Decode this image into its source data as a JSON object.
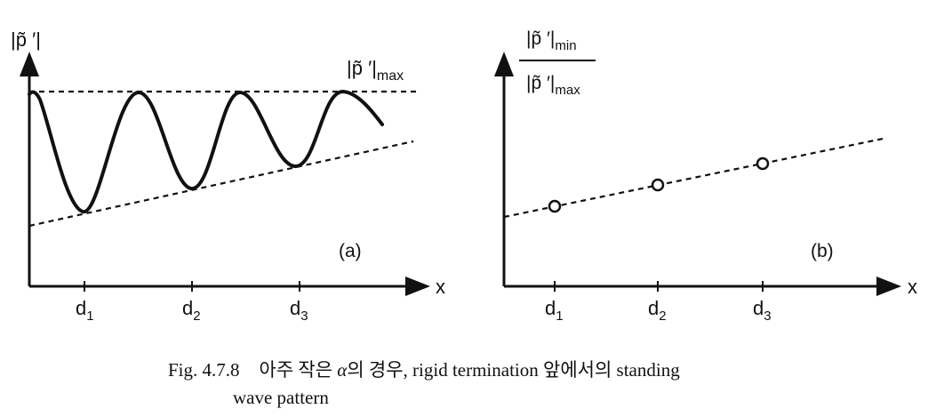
{
  "panel_a": {
    "y_label": "|p̃ ′|",
    "max_label_base": "|p̃ ′|",
    "max_label_sub": "max",
    "x_label": "x",
    "tag": "(a)",
    "ticks": [
      {
        "base": "d",
        "sub": "1"
      },
      {
        "base": "d",
        "sub": "2"
      },
      {
        "base": "d",
        "sub": "3"
      }
    ]
  },
  "panel_b": {
    "num_base": "|p̃ ′|",
    "num_sub": "min",
    "den_base": "|p̃ ′|",
    "den_sub": "max",
    "x_label": "x",
    "tag": "(b)",
    "ticks": [
      {
        "base": "d",
        "sub": "1"
      },
      {
        "base": "d",
        "sub": "2"
      },
      {
        "base": "d",
        "sub": "3"
      }
    ]
  },
  "caption": {
    "fig_number": "Fig. 4.7.8",
    "text_before_alpha": "아주 작은 ",
    "alpha": "α",
    "text_after_alpha": "의 경우,  rigid termination 앞에서의  standing",
    "line2": "wave pattern"
  }
}
